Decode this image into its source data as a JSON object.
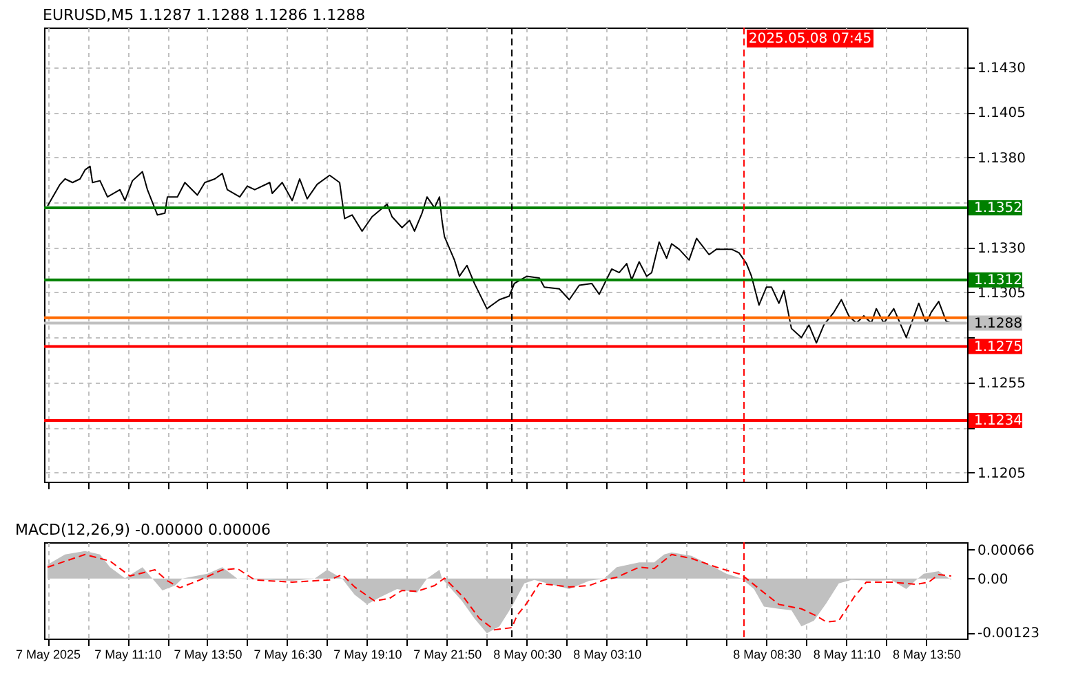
{
  "chart_data": [
    {
      "type": "line",
      "title": "EURUSD,M5 1.1287 1.1288 1.1286 1.1288",
      "xlim": [
        "2025-05-07T08:23",
        "2025-05-08T15:12"
      ],
      "xticks": [
        {
          "value": "2025-05-07T08:30",
          "label": null
        },
        {
          "value": "2025-05-07T09:50",
          "label": null
        },
        {
          "value": "2025-05-07T11:10",
          "label": null
        },
        {
          "value": "2025-05-07T12:30",
          "label": null
        },
        {
          "value": "2025-05-07T13:50",
          "label": null
        },
        {
          "value": "2025-05-07T15:10",
          "label": null
        },
        {
          "value": "2025-05-07T16:30",
          "label": null
        },
        {
          "value": "2025-05-07T17:50",
          "label": null
        },
        {
          "value": "2025-05-07T19:10",
          "label": null
        },
        {
          "value": "2025-05-07T20:30",
          "label": null
        },
        {
          "value": "2025-05-07T21:50",
          "label": null
        },
        {
          "value": "2025-05-07T23:10",
          "label": null
        },
        {
          "value": "2025-05-08T00:30",
          "label": null
        },
        {
          "value": "2025-05-08T01:50",
          "label": null
        },
        {
          "value": "2025-05-08T03:10",
          "label": null
        },
        {
          "value": "2025-05-08T04:30",
          "label": null
        },
        {
          "value": "2025-05-08T05:50",
          "label": null
        },
        {
          "value": "2025-05-08T07:10",
          "label": null
        },
        {
          "value": "2025-05-08T08:30",
          "label": null
        },
        {
          "value": "2025-05-08T09:50",
          "label": null
        },
        {
          "value": "2025-05-08T11:10",
          "label": null
        },
        {
          "value": "2025-05-08T12:30",
          "label": null
        },
        {
          "value": "2025-05-08T13:50",
          "label": null
        }
      ],
      "ylim": [
        1.12,
        1.1452
      ],
      "yticks": [
        {
          "value": 1.143,
          "label": "1.1430"
        },
        1.1405,
        {
          "value": 1.138,
          "label": "1.1380"
        },
        {
          "value": 1.1355,
          "label": null
        },
        {
          "value": 1.133,
          "label": "1.1330"
        },
        1.1305,
        {
          "value": 1.128,
          "label": null
        },
        1.1255,
        {
          "value": 1.123,
          "label": null
        },
        1.1205
      ],
      "tick_labels": "y",
      "grid": true,
      "series": [
        {
          "color": "#000000",
          "x": [
            "2025-05-07T08:30",
            "2025-05-07T08:55",
            "2025-05-07T09:05",
            "2025-05-07T09:20",
            "2025-05-07T09:35",
            "2025-05-07T09:45",
            "2025-05-07T09:55",
            "2025-05-07T10:00",
            "2025-05-07T10:15",
            "2025-05-07T10:30",
            "2025-05-07T10:55",
            "2025-05-07T11:05",
            "2025-05-07T11:20",
            "2025-05-07T11:40",
            "2025-05-07T11:50",
            "2025-05-07T12:10",
            "2025-05-07T12:25",
            "2025-05-07T12:30",
            "2025-05-07T12:50",
            "2025-05-07T13:05",
            "2025-05-07T13:30",
            "2025-05-07T13:45",
            "2025-05-07T14:05",
            "2025-05-07T14:20",
            "2025-05-07T14:30",
            "2025-05-07T14:55",
            "2025-05-07T15:10",
            "2025-05-07T15:25",
            "2025-05-07T15:55",
            "2025-05-07T16:00",
            "2025-05-07T16:20",
            "2025-05-07T16:40",
            "2025-05-07T16:55",
            "2025-05-07T17:10",
            "2025-05-07T17:30",
            "2025-05-07T17:55",
            "2025-05-07T18:15",
            "2025-05-07T18:25",
            "2025-05-07T18:40",
            "2025-05-07T19:00",
            "2025-05-07T19:20",
            "2025-05-07T19:50",
            "2025-05-07T20:00",
            "2025-05-07T20:20",
            "2025-05-07T20:35",
            "2025-05-07T20:45",
            "2025-05-07T21:00",
            "2025-05-07T21:10",
            "2025-05-07T21:25",
            "2025-05-07T21:35",
            "2025-05-07T21:40",
            "2025-05-07T21:45",
            "2025-05-07T22:05",
            "2025-05-07T22:15",
            "2025-05-07T22:30",
            "2025-05-07T22:45",
            "2025-05-07T23:10",
            "2025-05-07T23:35",
            "2025-05-07T23:55",
            "2025-05-08T00:05",
            "2025-05-08T00:30",
            "2025-05-08T00:55",
            "2025-05-08T01:05",
            "2025-05-08T01:35",
            "2025-05-08T01:55",
            "2025-05-08T02:15",
            "2025-05-08T02:40",
            "2025-05-08T02:55",
            "2025-05-08T03:20",
            "2025-05-08T03:35",
            "2025-05-08T03:50",
            "2025-05-08T04:00",
            "2025-05-08T04:15",
            "2025-05-08T04:30",
            "2025-05-08T04:40",
            "2025-05-08T04:55",
            "2025-05-08T05:10",
            "2025-05-08T05:20",
            "2025-05-08T05:35",
            "2025-05-08T05:55",
            "2025-05-08T06:10",
            "2025-05-08T06:35",
            "2025-05-08T06:50",
            "2025-05-08T07:20",
            "2025-05-08T07:35",
            "2025-05-08T07:50",
            "2025-05-08T08:00",
            "2025-05-08T08:15",
            "2025-05-08T08:30",
            "2025-05-08T08:40",
            "2025-05-08T08:55",
            "2025-05-08T09:05",
            "2025-05-08T09:20",
            "2025-05-08T09:40",
            "2025-05-08T09:55",
            "2025-05-08T10:10",
            "2025-05-08T10:25",
            "2025-05-08T10:45",
            "2025-05-08T11:00",
            "2025-05-08T11:15",
            "2025-05-08T11:30",
            "2025-05-08T11:45",
            "2025-05-08T12:00",
            "2025-05-08T12:10",
            "2025-05-08T12:25",
            "2025-05-08T12:45",
            "2025-05-08T13:10",
            "2025-05-08T13:35",
            "2025-05-08T13:50",
            "2025-05-08T14:00",
            "2025-05-08T14:15",
            "2025-05-08T14:30",
            "2025-05-08T14:40"
          ],
          "values": [
            1.1353,
            1.1365,
            1.1368,
            1.1366,
            1.1368,
            1.1373,
            1.1375,
            1.1366,
            1.1367,
            1.1358,
            1.1362,
            1.1356,
            1.1367,
            1.1372,
            1.1362,
            1.1348,
            1.1349,
            1.1358,
            1.1358,
            1.1366,
            1.1359,
            1.1366,
            1.1368,
            1.1371,
            1.1362,
            1.1358,
            1.1364,
            1.1362,
            1.1366,
            1.136,
            1.1366,
            1.1356,
            1.1368,
            1.1357,
            1.1365,
            1.137,
            1.1366,
            1.1346,
            1.1348,
            1.1339,
            1.1347,
            1.1354,
            1.1347,
            1.1341,
            1.1345,
            1.1339,
            1.1349,
            1.1358,
            1.1352,
            1.1358,
            1.1345,
            1.1336,
            1.1323,
            1.1314,
            1.132,
            1.131,
            1.1296,
            1.1301,
            1.1303,
            1.131,
            1.1314,
            1.1313,
            1.1308,
            1.1307,
            1.1301,
            1.1309,
            1.131,
            1.1304,
            1.1318,
            1.1316,
            1.1321,
            1.1312,
            1.1322,
            1.1314,
            1.1316,
            1.1333,
            1.1324,
            1.1332,
            1.1329,
            1.1323,
            1.1335,
            1.1326,
            1.1329,
            1.1329,
            1.1327,
            1.1321,
            1.1314,
            1.1298,
            1.1308,
            1.1308,
            1.1299,
            1.1306,
            1.1285,
            1.128,
            1.1287,
            1.1277,
            1.1287,
            1.1294,
            1.1301,
            1.1292,
            1.1288,
            1.1292,
            1.1288,
            1.1296,
            1.1288,
            1.1296,
            1.128,
            1.1299,
            1.1288,
            1.1294,
            1.13,
            1.1289,
            1.1288
          ]
        }
      ],
      "ref_lines": [
        {
          "axis": "y",
          "value": 1.1352,
          "label": "1.1352",
          "color": "#008000"
        },
        {
          "axis": "y",
          "value": 1.1312,
          "label": "1.1312",
          "color": "#008000"
        },
        {
          "axis": "y",
          "value": 1.1291,
          "color": "#ff6a00"
        },
        {
          "axis": "y",
          "value": 1.1288,
          "label": "1.1288",
          "color": "#c0c0c0"
        },
        {
          "axis": "y",
          "value": 1.1275,
          "label": "1.1275",
          "color": "#ff0000"
        },
        {
          "axis": "y",
          "value": 1.1234,
          "label": "1.1234",
          "color": "#ff0000"
        },
        {
          "axis": "x",
          "value": "2025-05-08T00:00",
          "color": "#000000",
          "line_style": "dashed"
        },
        {
          "axis": "x",
          "value": "2025-05-08T07:45",
          "label": "2025.05.08 07:45",
          "color": "#ff0000",
          "line_style": "dashed"
        }
      ]
    },
    {
      "type": "line",
      "title": "MACD(12,26,9) -0.00000 0.00006",
      "xlim": [
        "2025-05-07T08:23",
        "2025-05-08T15:12"
      ],
      "xticks": [
        {
          "value": "2025-05-07T08:30",
          "label": "7 May 2025"
        },
        {
          "value": "2025-05-07T09:50",
          "label": null
        },
        {
          "value": "2025-05-07T11:10",
          "label": "7 May 11:10"
        },
        {
          "value": "2025-05-07T12:30",
          "label": null
        },
        {
          "value": "2025-05-07T13:50",
          "label": "7 May 13:50"
        },
        {
          "value": "2025-05-07T15:10",
          "label": null
        },
        {
          "value": "2025-05-07T16:30",
          "label": "7 May 16:30"
        },
        {
          "value": "2025-05-07T17:50",
          "label": null
        },
        {
          "value": "2025-05-07T19:10",
          "label": "7 May 19:10"
        },
        {
          "value": "2025-05-07T20:30",
          "label": null
        },
        {
          "value": "2025-05-07T21:50",
          "label": "7 May 21:50"
        },
        {
          "value": "2025-05-07T23:10",
          "label": null
        },
        {
          "value": "2025-05-08T00:30",
          "label": "8 May 00:30"
        },
        {
          "value": "2025-05-08T01:50",
          "label": null
        },
        {
          "value": "2025-05-08T03:10",
          "label": "8 May 03:10"
        },
        {
          "value": "2025-05-08T04:30",
          "label": null
        },
        {
          "value": "2025-05-08T05:50",
          "label": null
        },
        {
          "value": "2025-05-08T07:10",
          "label": null
        },
        {
          "value": "2025-05-08T08:30",
          "label": "8 May 08:30"
        },
        {
          "value": "2025-05-08T09:50",
          "label": null
        },
        {
          "value": "2025-05-08T11:10",
          "label": "8 May 11:10"
        },
        {
          "value": "2025-05-08T12:30",
          "label": null
        },
        {
          "value": "2025-05-08T13:50",
          "label": "8 May 13:50"
        }
      ],
      "ylim": [
        -0.00137,
        0.00083
      ],
      "yticks": [
        0.00066,
        {
          "value": 0,
          "label": "0.00"
        },
        -0.00123
      ],
      "grid": "x",
      "series": [
        {
          "type": "area",
          "color": "#c0c0c0",
          "x": [
            "2025-05-07T08:30",
            "2025-05-07T09:05",
            "2025-05-07T09:45",
            "2025-05-07T10:15",
            "2025-05-07T10:35",
            "2025-05-07T11:05",
            "2025-05-07T11:40",
            "2025-05-07T12:00",
            "2025-05-07T12:20",
            "2025-05-07T12:45",
            "2025-05-07T13:00",
            "2025-05-07T13:50",
            "2025-05-07T14:20",
            "2025-05-07T14:50",
            "2025-05-07T15:25",
            "2025-05-07T16:40",
            "2025-05-07T17:25",
            "2025-05-07T17:50",
            "2025-05-07T18:20",
            "2025-05-07T18:45",
            "2025-05-07T19:10",
            "2025-05-07T19:35",
            "2025-05-07T20:10",
            "2025-05-07T20:50",
            "2025-05-07T21:10",
            "2025-05-07T21:35",
            "2025-05-07T21:40",
            "2025-05-07T22:20",
            "2025-05-07T22:45",
            "2025-05-07T23:10",
            "2025-05-07T23:35",
            "2025-05-08T00:00",
            "2025-05-08T00:25",
            "2025-05-08T00:45",
            "2025-05-08T01:55",
            "2025-05-08T02:35",
            "2025-05-08T03:05",
            "2025-05-08T03:30",
            "2025-05-08T04:15",
            "2025-05-08T04:45",
            "2025-05-08T05:05",
            "2025-05-08T05:20",
            "2025-05-08T06:00",
            "2025-05-08T06:35",
            "2025-05-08T07:10",
            "2025-05-08T07:40",
            "2025-05-08T08:05",
            "2025-05-08T08:25",
            "2025-05-08T08:55",
            "2025-05-08T09:20",
            "2025-05-08T09:40",
            "2025-05-08T10:05",
            "2025-05-08T10:30",
            "2025-05-08T10:55",
            "2025-05-08T11:20",
            "2025-05-08T12:10",
            "2025-05-08T12:40",
            "2025-05-08T13:10",
            "2025-05-08T13:30",
            "2025-05-08T13:45",
            "2025-05-08T14:15",
            "2025-05-08T14:40"
          ],
          "values": [
            0.00032,
            0.00055,
            0.00063,
            0.00055,
            0.00026,
            1e-05,
            0.00026,
            0,
            -0.00027,
            -0.00016,
            0,
            0.00011,
            0.00026,
            0,
            -2e-05,
            -5e-05,
            0,
            0.0002,
            0,
            -0.00037,
            -0.00059,
            -0.00043,
            -0.00024,
            -0.00032,
            0,
            0.0002,
            0,
            -0.00051,
            -0.00091,
            -0.00125,
            -0.00109,
            -0.00064,
            -0.00011,
            -3e-05,
            -0.00024,
            -5e-05,
            0,
            0.00026,
            0.00037,
            0.00037,
            0.00055,
            0.0006,
            0.00052,
            0.00032,
            0.00011,
            0,
            -0.00024,
            -0.00064,
            -0.00069,
            -0.00072,
            -0.00109,
            -0.00096,
            -0.00056,
            -0.00011,
            -3e-05,
            -5e-05,
            -3e-05,
            -0.00024,
            -3e-05,
            0.00011,
            0.00017,
            -3e-05
          ]
        },
        {
          "color": "#ff0000",
          "line_style": "dashed",
          "x": [
            "2025-05-07T08:30",
            "2025-05-07T09:45",
            "2025-05-07T10:35",
            "2025-05-07T11:15",
            "2025-05-07T12:05",
            "2025-05-07T12:30",
            "2025-05-07T12:55",
            "2025-05-07T13:35",
            "2025-05-07T14:20",
            "2025-05-07T14:50",
            "2025-05-07T15:25",
            "2025-05-07T16:40",
            "2025-05-07T17:55",
            "2025-05-07T18:20",
            "2025-05-07T18:45",
            "2025-05-07T19:25",
            "2025-05-07T19:55",
            "2025-05-07T20:20",
            "2025-05-07T20:50",
            "2025-05-07T21:25",
            "2025-05-07T21:45",
            "2025-05-07T22:25",
            "2025-05-07T22:55",
            "2025-05-07T23:25",
            "2025-05-08T00:00",
            "2025-05-08T00:10",
            "2025-05-08T00:30",
            "2025-05-08T00:55",
            "2025-05-08T01:55",
            "2025-05-08T02:35",
            "2025-05-08T03:05",
            "2025-05-08T03:30",
            "2025-05-08T04:15",
            "2025-05-08T04:45",
            "2025-05-08T05:20",
            "2025-05-08T06:00",
            "2025-05-08T06:50",
            "2025-05-08T07:40",
            "2025-05-08T08:25",
            "2025-05-08T08:55",
            "2025-05-08T09:40",
            "2025-05-08T10:10",
            "2025-05-08T10:30",
            "2025-05-08T10:55",
            "2025-05-08T11:25",
            "2025-05-08T11:50",
            "2025-05-08T12:40",
            "2025-05-08T13:30",
            "2025-05-08T13:55",
            "2025-05-08T14:15",
            "2025-05-08T14:40"
          ],
          "values": [
            0.00026,
            0.00055,
            0.0004,
            6e-05,
            0.0002,
            -5e-05,
            -0.00021,
            -3e-05,
            0.0002,
            0.00023,
            -3e-05,
            -8e-05,
            -3e-05,
            9e-05,
            -0.00019,
            -0.00051,
            -0.00045,
            -0.00027,
            -0.00029,
            -0.00016,
            1e-05,
            -0.00045,
            -0.00091,
            -0.00117,
            -0.00112,
            -0.00085,
            -0.00056,
            -0.00011,
            -0.00019,
            -0.00016,
            -3e-05,
            3e-05,
            0.00026,
            0.00023,
            0.00055,
            0.00046,
            0.00026,
            9e-05,
            -0.00032,
            -0.00059,
            -0.00069,
            -0.00085,
            -0.00099,
            -0.00096,
            -0.00043,
            -8e-05,
            -8e-05,
            -0.00013,
            -8e-05,
            9e-05,
            6e-05
          ]
        }
      ],
      "ref_lines": [
        {
          "axis": "x",
          "value": "2025-05-08T00:00",
          "color": "#000000",
          "line_style": "dashed"
        },
        {
          "axis": "x",
          "value": "2025-05-08T07:45",
          "color": "#ff0000",
          "line_style": "dashed"
        }
      ]
    }
  ]
}
